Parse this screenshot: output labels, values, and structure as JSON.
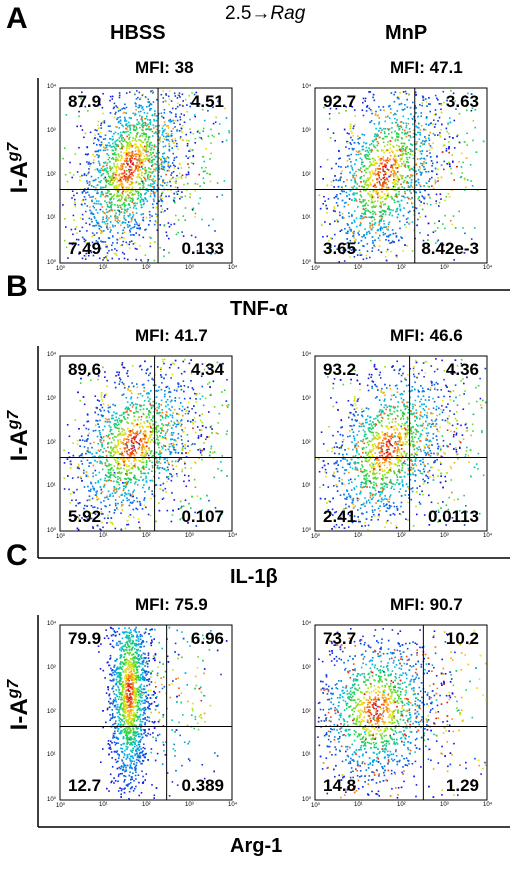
{
  "title": {
    "prefix": "2.5→",
    "suffix": "Rag"
  },
  "column_headers": [
    "HBSS",
    "MnP"
  ],
  "y_axis_label": {
    "base": "I-A",
    "sup": "g7"
  },
  "x_tick_labels": [
    "10⁰",
    "10¹",
    "10²",
    "10³",
    "10⁴"
  ],
  "y_tick_labels": [
    "10⁰",
    "10¹",
    "10²",
    "10³",
    "10⁴"
  ],
  "panels": [
    {
      "letter": "A",
      "x_label": "TNF-α",
      "plots": [
        {
          "mfi": "MFI: 38",
          "ul": "87.9",
          "ur": "4.51",
          "ll": "7.49",
          "lr": "0.133"
        },
        {
          "mfi": "MFI: 47.1",
          "ul": "92.7",
          "ur": "3.63",
          "ll": "3.65",
          "lr": "8.42e-3"
        }
      ]
    },
    {
      "letter": "B",
      "x_label": "IL-1β",
      "plots": [
        {
          "mfi": "MFI: 41.7",
          "ul": "89.6",
          "ur": "4.34",
          "ll": "5.92",
          "lr": "0.107"
        },
        {
          "mfi": "MFI: 46.6",
          "ul": "93.2",
          "ur": "4.36",
          "ll": "2.41",
          "lr": "0.0113"
        }
      ]
    },
    {
      "letter": "C",
      "x_label": "Arg-1",
      "plots": [
        {
          "mfi": "MFI: 75.9",
          "ul": "79.9",
          "ur": "6.96",
          "ll": "12.7",
          "lr": "0.389"
        },
        {
          "mfi": "MFI: 90.7",
          "ul": "73.7",
          "ur": "10.2",
          "ll": "14.8",
          "lr": "1.29"
        }
      ]
    }
  ]
}
